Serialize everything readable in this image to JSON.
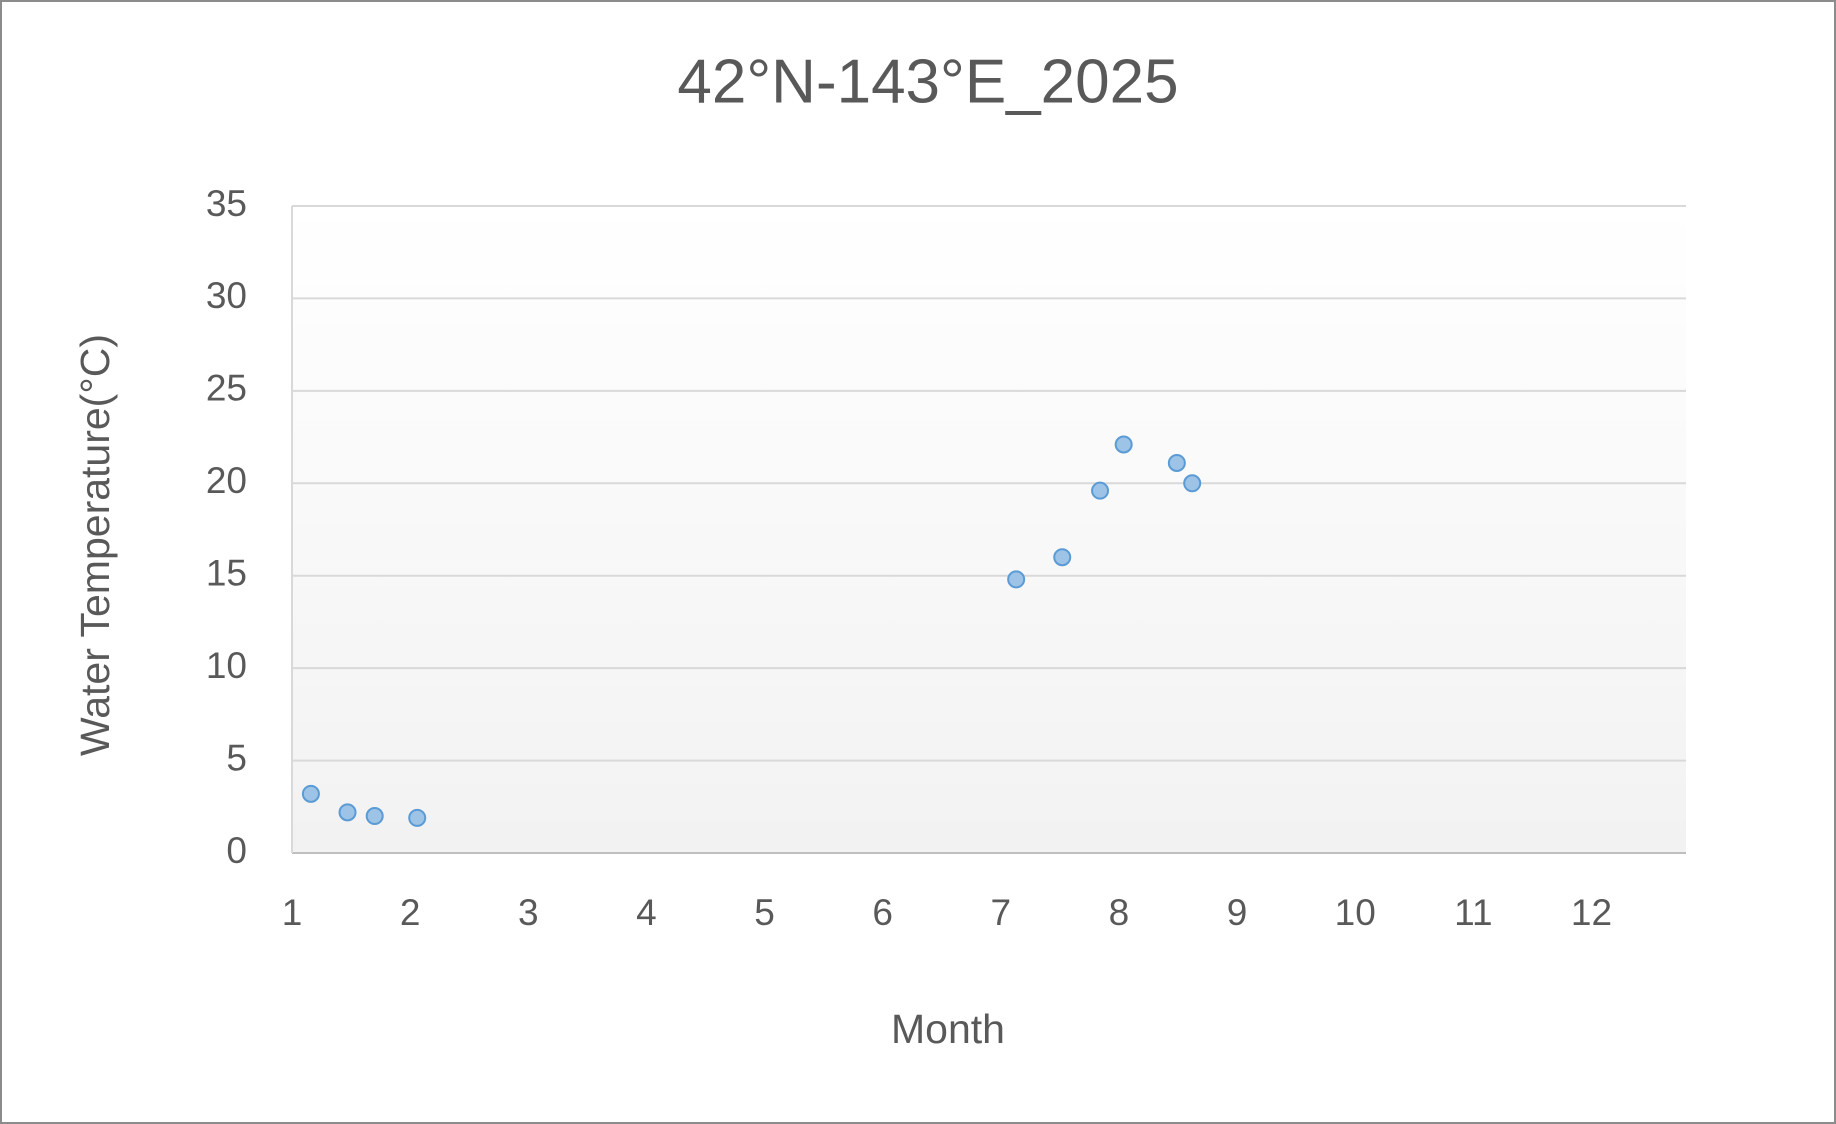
{
  "chart_data": {
    "type": "scatter",
    "title": "42°N-143°E_2025",
    "x_label": "Month",
    "y_label": "Water Temperature(°C)",
    "series": [
      {
        "color": "#9dc3e6",
        "x": [
          1.16,
          1.47,
          1.7,
          2.06,
          7.13,
          7.52,
          7.84,
          8.04,
          8.49,
          8.62
        ],
        "values": [
          3.2,
          2.2,
          2.0,
          1.9,
          14.8,
          16.0,
          19.6,
          22.1,
          21.1,
          20.0
        ]
      }
    ],
    "xlim": [
      1,
      12.8
    ],
    "xticks": [
      1,
      2,
      3,
      4,
      5,
      6,
      7,
      8,
      9,
      10,
      11,
      12
    ],
    "ylim": [
      0,
      35
    ],
    "yticks": [
      0,
      5,
      10,
      15,
      20,
      25,
      30,
      35
    ],
    "grid": true
  }
}
